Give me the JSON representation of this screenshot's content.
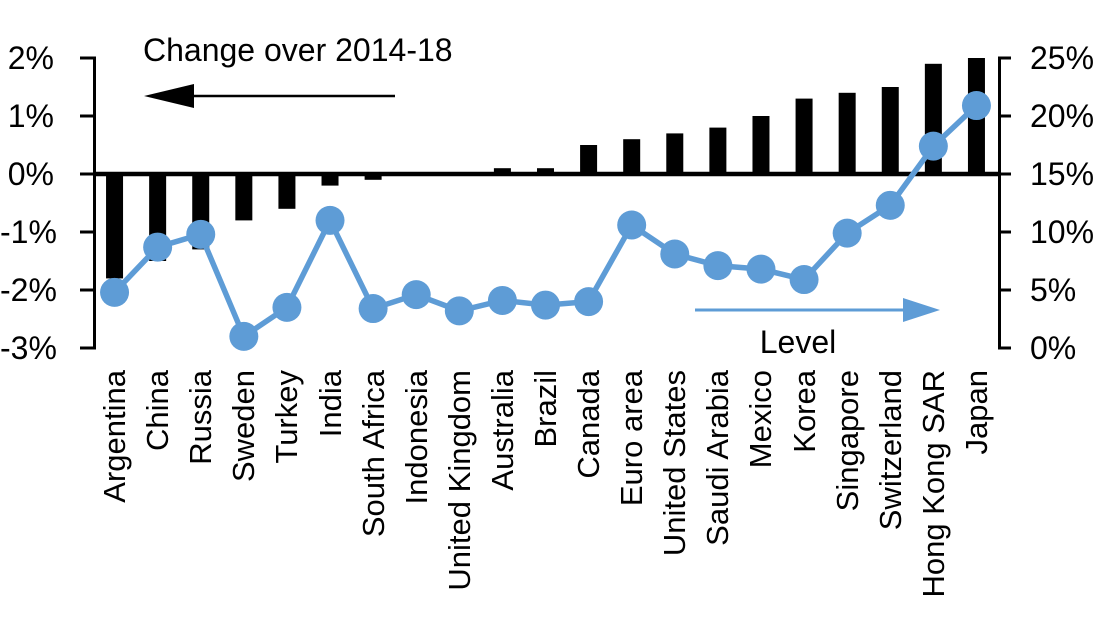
{
  "chart_data": {
    "type": "bar",
    "title": "",
    "categories": [
      "Argentina",
      "China",
      "Russia",
      "Sweden",
      "Turkey",
      "India",
      "South Africa",
      "Indonesia",
      "United Kingdom",
      "Australia",
      "Brazil",
      "Canada",
      "Euro area",
      "United States",
      "Saudi Arabia",
      "Mexico",
      "Korea",
      "Singapore",
      "Switzerland",
      "Hong Kong SAR",
      "Japan"
    ],
    "series": [
      {
        "name": "Change over 2014-18",
        "kind": "bar",
        "axis": "left",
        "values": [
          -1.8,
          -1.5,
          -1.3,
          -0.8,
          -0.6,
          -0.2,
          -0.1,
          0,
          0,
          0.1,
          0.1,
          0.5,
          0.6,
          0.7,
          0.8,
          1.0,
          1.3,
          1.4,
          1.5,
          1.9,
          2.0
        ]
      },
      {
        "name": "Level",
        "kind": "line",
        "axis": "right",
        "values": [
          4.8,
          8.7,
          9.8,
          1.0,
          3.5,
          11.0,
          3.4,
          4.6,
          3.2,
          4.1,
          3.7,
          4.0,
          10.6,
          8.1,
          7.1,
          6.8,
          5.9,
          9.9,
          12.3,
          17.4,
          20.9
        ]
      }
    ],
    "left_axis": {
      "min": -3,
      "max": 2,
      "tick_labels": [
        "2%",
        "1%",
        "0%",
        "-1%",
        "-2%",
        "-3%"
      ],
      "tick_values": [
        2,
        1,
        0,
        -1,
        -2,
        -3
      ]
    },
    "right_axis": {
      "min": 0,
      "max": 25,
      "tick_labels": [
        "25%",
        "20%",
        "15%",
        "10%",
        "5%",
        "0%"
      ],
      "tick_values": [
        25,
        20,
        15,
        10,
        5,
        0
      ]
    },
    "annotations": {
      "left_series_label": "Change over 2014-18",
      "right_series_label": "Level"
    },
    "layout_hints": {
      "grid": "off",
      "zero_line": true,
      "legend": "arrows-pointing-to-axes"
    },
    "colors": {
      "bar": "#000000",
      "line": "#5E9CD6"
    }
  }
}
